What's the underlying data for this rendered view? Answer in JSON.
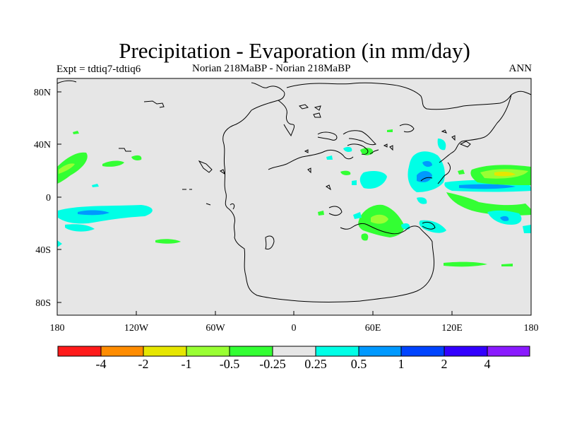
{
  "title": "Precipitation - Evaporation (in mm/day)",
  "subtitle": {
    "left": "Expt = tdtiq7-tdtiq6",
    "center": "Norian   218MaBP - Norian   218MaBP",
    "right": "ANN"
  },
  "axes": {
    "x_ticks": [
      "180",
      "120W",
      "60W",
      "0",
      "60E",
      "120E",
      "180"
    ],
    "y_ticks": [
      "80N",
      "40N",
      "0",
      "40S",
      "80S"
    ]
  },
  "colorbar": {
    "labels": [
      "-4",
      "-2",
      "-1",
      "-0.5",
      "-0.25",
      "0.25",
      "0.5",
      "1",
      "2",
      "4"
    ],
    "colors": [
      "#ff1a1a",
      "#ff8c00",
      "#e6e600",
      "#99ff33",
      "#33ff33",
      "#e6e6e6",
      "#00ffe6",
      "#0099ff",
      "#0044ff",
      "#3300ff",
      "#8a1aff"
    ]
  },
  "colors": {
    "land_background": "#e6e6e6",
    "wet_light": "#00ffe6",
    "wet_mid": "#0099ff",
    "dry_light": "#33ff33",
    "dry_mid": "#99ff33",
    "dry_strong": "#e6e600"
  }
}
